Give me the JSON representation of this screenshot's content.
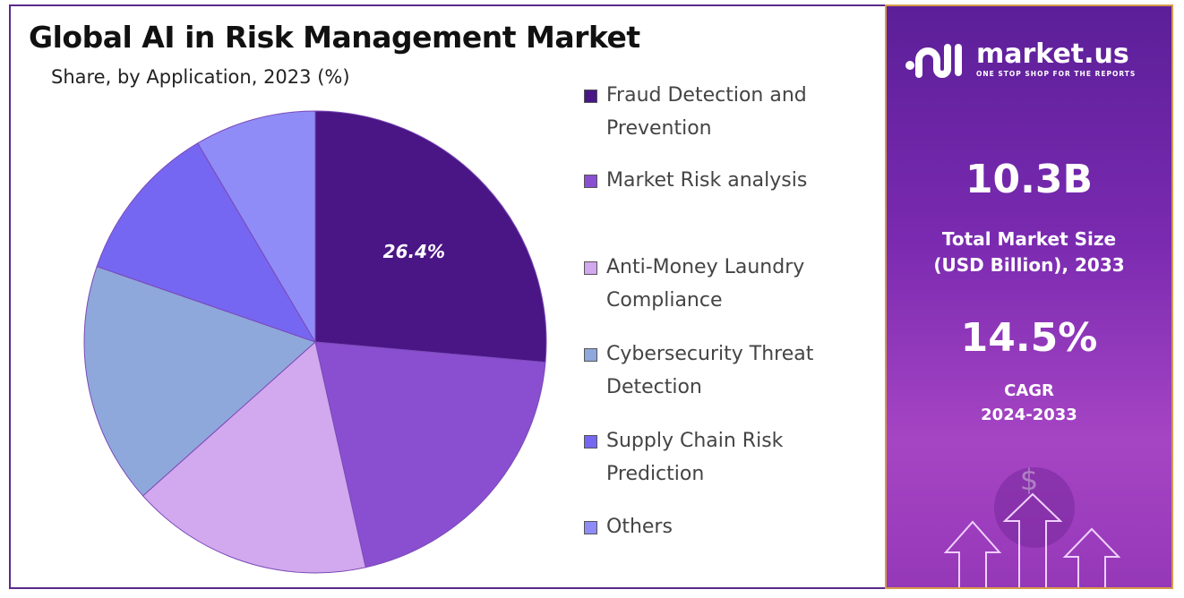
{
  "chart_data": {
    "type": "pie",
    "title": "Global AI in Risk Management Market",
    "subtitle": "Share, by Application, 2023 (%)",
    "categories": [
      "Fraud Detection and Prevention",
      "Market Risk analysis",
      "Anti-Money Laundry Compliance",
      "Cybersecurity Threat Detection",
      "Supply Chain Risk Prediction",
      "Others"
    ],
    "values": [
      26.4,
      20.1,
      16.9,
      16.9,
      11.2,
      8.5
    ],
    "colors": [
      "#4a1585",
      "#8a4fd0",
      "#d2a8ee",
      "#8fa8dc",
      "#7667f2",
      "#8f8cf8"
    ],
    "data_labels": [
      "26.4%",
      "",
      "",
      "",
      "",
      ""
    ],
    "start_angle": "12 o'clock, clockwise",
    "legend_placement": "right",
    "legend": [
      {
        "line1": "Fraud Detection and",
        "line2": "Prevention"
      },
      {
        "line1": "Market Risk analysis",
        "line2": ""
      },
      {
        "line1": "Anti-Money Laundry",
        "line2": "Compliance"
      },
      {
        "line1": "Cybersecurity Threat",
        "line2": "Detection"
      },
      {
        "line1": "Supply Chain Risk",
        "line2": "Prediction"
      },
      {
        "line1": "Others",
        "line2": ""
      }
    ]
  },
  "panel": {
    "brand": "market.us",
    "tagline": "ONE STOP SHOP FOR THE REPORTS",
    "market_size": "10.3B",
    "market_size_label1": "Total Market Size",
    "market_size_label2": "(USD Billion), 2033",
    "cagr": "14.5%",
    "cagr_label1": "CAGR",
    "cagr_label2": "2024-2033",
    "currency_symbol": "$",
    "accent": "#7a2ab0"
  }
}
